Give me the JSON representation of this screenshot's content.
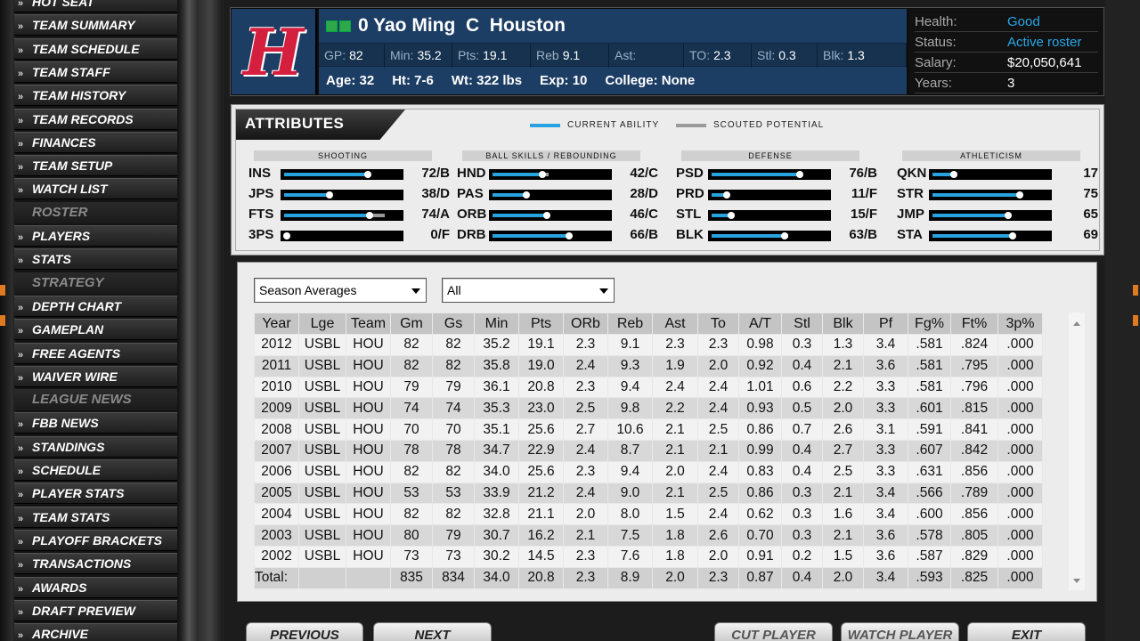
{
  "sidebar": {
    "items": [
      {
        "label": "HOT SEAT",
        "type": "item"
      },
      {
        "label": "TEAM SUMMARY",
        "type": "item"
      },
      {
        "label": "TEAM SCHEDULE",
        "type": "item"
      },
      {
        "label": "TEAM STAFF",
        "type": "item"
      },
      {
        "label": "TEAM HISTORY",
        "type": "item"
      },
      {
        "label": "TEAM RECORDS",
        "type": "item"
      },
      {
        "label": "FINANCES",
        "type": "item"
      },
      {
        "label": "TEAM SETUP",
        "type": "item"
      },
      {
        "label": "WATCH LIST",
        "type": "item"
      },
      {
        "label": "ROSTER",
        "type": "header"
      },
      {
        "label": "PLAYERS",
        "type": "item"
      },
      {
        "label": "STATS",
        "type": "item"
      },
      {
        "label": "STRATEGY",
        "type": "header"
      },
      {
        "label": "DEPTH CHART",
        "type": "item"
      },
      {
        "label": "GAMEPLAN",
        "type": "item"
      },
      {
        "label": "FREE AGENTS",
        "type": "item"
      },
      {
        "label": "WAIVER WIRE",
        "type": "item"
      },
      {
        "label": "LEAGUE NEWS",
        "type": "header"
      },
      {
        "label": "FBB NEWS",
        "type": "item"
      },
      {
        "label": "STANDINGS",
        "type": "item"
      },
      {
        "label": "SCHEDULE",
        "type": "item"
      },
      {
        "label": "PLAYER STATS",
        "type": "item"
      },
      {
        "label": "TEAM STATS",
        "type": "item"
      },
      {
        "label": "PLAYOFF BRACKETS",
        "type": "item"
      },
      {
        "label": "TRANSACTIONS",
        "type": "item"
      },
      {
        "label": "AWARDS",
        "type": "item"
      },
      {
        "label": "DRAFT PREVIEW",
        "type": "item"
      },
      {
        "label": "ARCHIVE",
        "type": "item"
      }
    ]
  },
  "player": {
    "logo_letter": "H",
    "name_line": "0 Yao Ming  C  Houston",
    "stats": [
      {
        "label": "GP:",
        "value": "82"
      },
      {
        "label": "Min:",
        "value": "35.2"
      },
      {
        "label": "Pts:",
        "value": "19.1"
      },
      {
        "label": "Reb",
        "value": "9.1"
      },
      {
        "label": "Ast:",
        "value": ""
      },
      {
        "label": "TO:",
        "value": "2.3"
      },
      {
        "label": "Stl:",
        "value": "0.3"
      },
      {
        "label": "Blk:",
        "value": "1.3"
      }
    ],
    "bio": {
      "age": "Age: 32",
      "height": "Ht: 7-6",
      "weight": "Wt: 322 lbs",
      "exp": "Exp: 10",
      "college": "College: None"
    },
    "contract": [
      {
        "label": "Health:",
        "value": "Good",
        "accent": true
      },
      {
        "label": "Status:",
        "value": "Active roster",
        "accent": true
      },
      {
        "label": "Salary:",
        "value": "$20,050,641",
        "accent": false
      },
      {
        "label": "Years:",
        "value": "3",
        "accent": false
      }
    ]
  },
  "attributes": {
    "title": "ATTRIBUTES",
    "legend_current": "CURRENT ABILITY",
    "legend_potential": "SCOUTED POTENTIAL",
    "colors": {
      "current": "#29a3e0",
      "potential": "#9a9a9a"
    },
    "groups": [
      {
        "name": "SHOOTING",
        "rows": [
          {
            "abbr": "INS",
            "current": 72,
            "potential": 72,
            "grade": "72/B"
          },
          {
            "abbr": "JPS",
            "current": 38,
            "potential": 38,
            "grade": "38/D"
          },
          {
            "abbr": "FTS",
            "current": 74,
            "potential": 90,
            "grade": "74/A"
          },
          {
            "abbr": "3PS",
            "current": 0,
            "potential": 0,
            "grade": "0/F"
          }
        ]
      },
      {
        "name": "BALL SKILLS / REBOUNDING",
        "rows": [
          {
            "abbr": "HND",
            "current": 42,
            "potential": 50,
            "grade": "42/C"
          },
          {
            "abbr": "PAS",
            "current": 28,
            "potential": 28,
            "grade": "28/D"
          },
          {
            "abbr": "ORB",
            "current": 46,
            "potential": 48,
            "grade": "46/C"
          },
          {
            "abbr": "DRB",
            "current": 66,
            "potential": 68,
            "grade": "66/B"
          }
        ]
      },
      {
        "name": "DEFENSE",
        "rows": [
          {
            "abbr": "PSD",
            "current": 76,
            "potential": 76,
            "grade": "76/B"
          },
          {
            "abbr": "PRD",
            "current": 11,
            "potential": 11,
            "grade": "11/F"
          },
          {
            "abbr": "STL",
            "current": 15,
            "potential": 15,
            "grade": "15/F"
          },
          {
            "abbr": "BLK",
            "current": 63,
            "potential": 68,
            "grade": "63/B"
          }
        ]
      },
      {
        "name": "ATHLETICISM",
        "rows": [
          {
            "abbr": "QKN",
            "current": 17,
            "potential": 17,
            "grade": "17"
          },
          {
            "abbr": "STR",
            "current": 75,
            "potential": 75,
            "grade": "75"
          },
          {
            "abbr": "JMP",
            "current": 65,
            "potential": 65,
            "grade": "65"
          },
          {
            "abbr": "STA",
            "current": 69,
            "potential": 69,
            "grade": "69"
          }
        ]
      }
    ]
  },
  "filters": {
    "stat_type": "Season Averages",
    "split": "All"
  },
  "table": {
    "headers": [
      "Year",
      "Lge",
      "Team",
      "Gm",
      "Gs",
      "Min",
      "Pts",
      "ORb",
      "Reb",
      "Ast",
      "To",
      "A/T",
      "Stl",
      "Blk",
      "Pf",
      "Fg%",
      "Ft%",
      "3p%"
    ],
    "rows": [
      [
        "2012",
        "USBL",
        "HOU",
        "82",
        "82",
        "35.2",
        "19.1",
        "2.3",
        "9.1",
        "2.3",
        "2.3",
        "0.98",
        "0.3",
        "1.3",
        "3.4",
        ".581",
        ".824",
        ".000"
      ],
      [
        "2011",
        "USBL",
        "HOU",
        "82",
        "82",
        "35.8",
        "19.0",
        "2.4",
        "9.3",
        "1.9",
        "2.0",
        "0.92",
        "0.4",
        "2.1",
        "3.6",
        ".581",
        ".795",
        ".000"
      ],
      [
        "2010",
        "USBL",
        "HOU",
        "79",
        "79",
        "36.1",
        "20.8",
        "2.3",
        "9.4",
        "2.4",
        "2.4",
        "1.01",
        "0.6",
        "2.2",
        "3.3",
        ".581",
        ".796",
        ".000"
      ],
      [
        "2009",
        "USBL",
        "HOU",
        "74",
        "74",
        "35.3",
        "23.0",
        "2.5",
        "9.8",
        "2.2",
        "2.4",
        "0.93",
        "0.5",
        "2.0",
        "3.3",
        ".601",
        ".815",
        ".000"
      ],
      [
        "2008",
        "USBL",
        "HOU",
        "70",
        "70",
        "35.1",
        "25.6",
        "2.7",
        "10.6",
        "2.1",
        "2.5",
        "0.86",
        "0.7",
        "2.6",
        "3.1",
        ".591",
        ".841",
        ".000"
      ],
      [
        "2007",
        "USBL",
        "HOU",
        "78",
        "78",
        "34.7",
        "22.9",
        "2.4",
        "8.7",
        "2.1",
        "2.1",
        "0.99",
        "0.4",
        "2.7",
        "3.3",
        ".607",
        ".842",
        ".000"
      ],
      [
        "2006",
        "USBL",
        "HOU",
        "82",
        "82",
        "34.0",
        "25.6",
        "2.3",
        "9.4",
        "2.0",
        "2.4",
        "0.83",
        "0.4",
        "2.5",
        "3.3",
        ".631",
        ".856",
        ".000"
      ],
      [
        "2005",
        "USBL",
        "HOU",
        "53",
        "53",
        "33.9",
        "21.2",
        "2.4",
        "9.0",
        "2.1",
        "2.5",
        "0.86",
        "0.3",
        "2.1",
        "3.4",
        ".566",
        ".789",
        ".000"
      ],
      [
        "2004",
        "USBL",
        "HOU",
        "82",
        "82",
        "32.8",
        "21.1",
        "2.0",
        "8.0",
        "1.5",
        "2.4",
        "0.62",
        "0.3",
        "1.6",
        "3.4",
        ".600",
        ".856",
        ".000"
      ],
      [
        "2003",
        "USBL",
        "HOU",
        "80",
        "79",
        "30.7",
        "16.2",
        "2.1",
        "7.5",
        "1.8",
        "2.6",
        "0.70",
        "0.3",
        "2.1",
        "3.6",
        ".578",
        ".805",
        ".000"
      ],
      [
        "2002",
        "USBL",
        "HOU",
        "73",
        "73",
        "30.2",
        "14.5",
        "2.3",
        "7.6",
        "1.8",
        "2.0",
        "0.91",
        "0.2",
        "1.5",
        "3.6",
        ".587",
        ".829",
        ".000"
      ]
    ],
    "total": [
      "Total:",
      "",
      "",
      "835",
      "834",
      "34.0",
      "20.8",
      "2.3",
      "8.9",
      "2.0",
      "2.3",
      "0.87",
      "0.4",
      "2.0",
      "3.4",
      ".593",
      ".825",
      ".000"
    ]
  },
  "buttons": {
    "previous": "PREVIOUS",
    "next": "NEXT",
    "cut": "CUT PLAYER",
    "watch": "WATCH PLAYER",
    "exit": "EXIT"
  }
}
